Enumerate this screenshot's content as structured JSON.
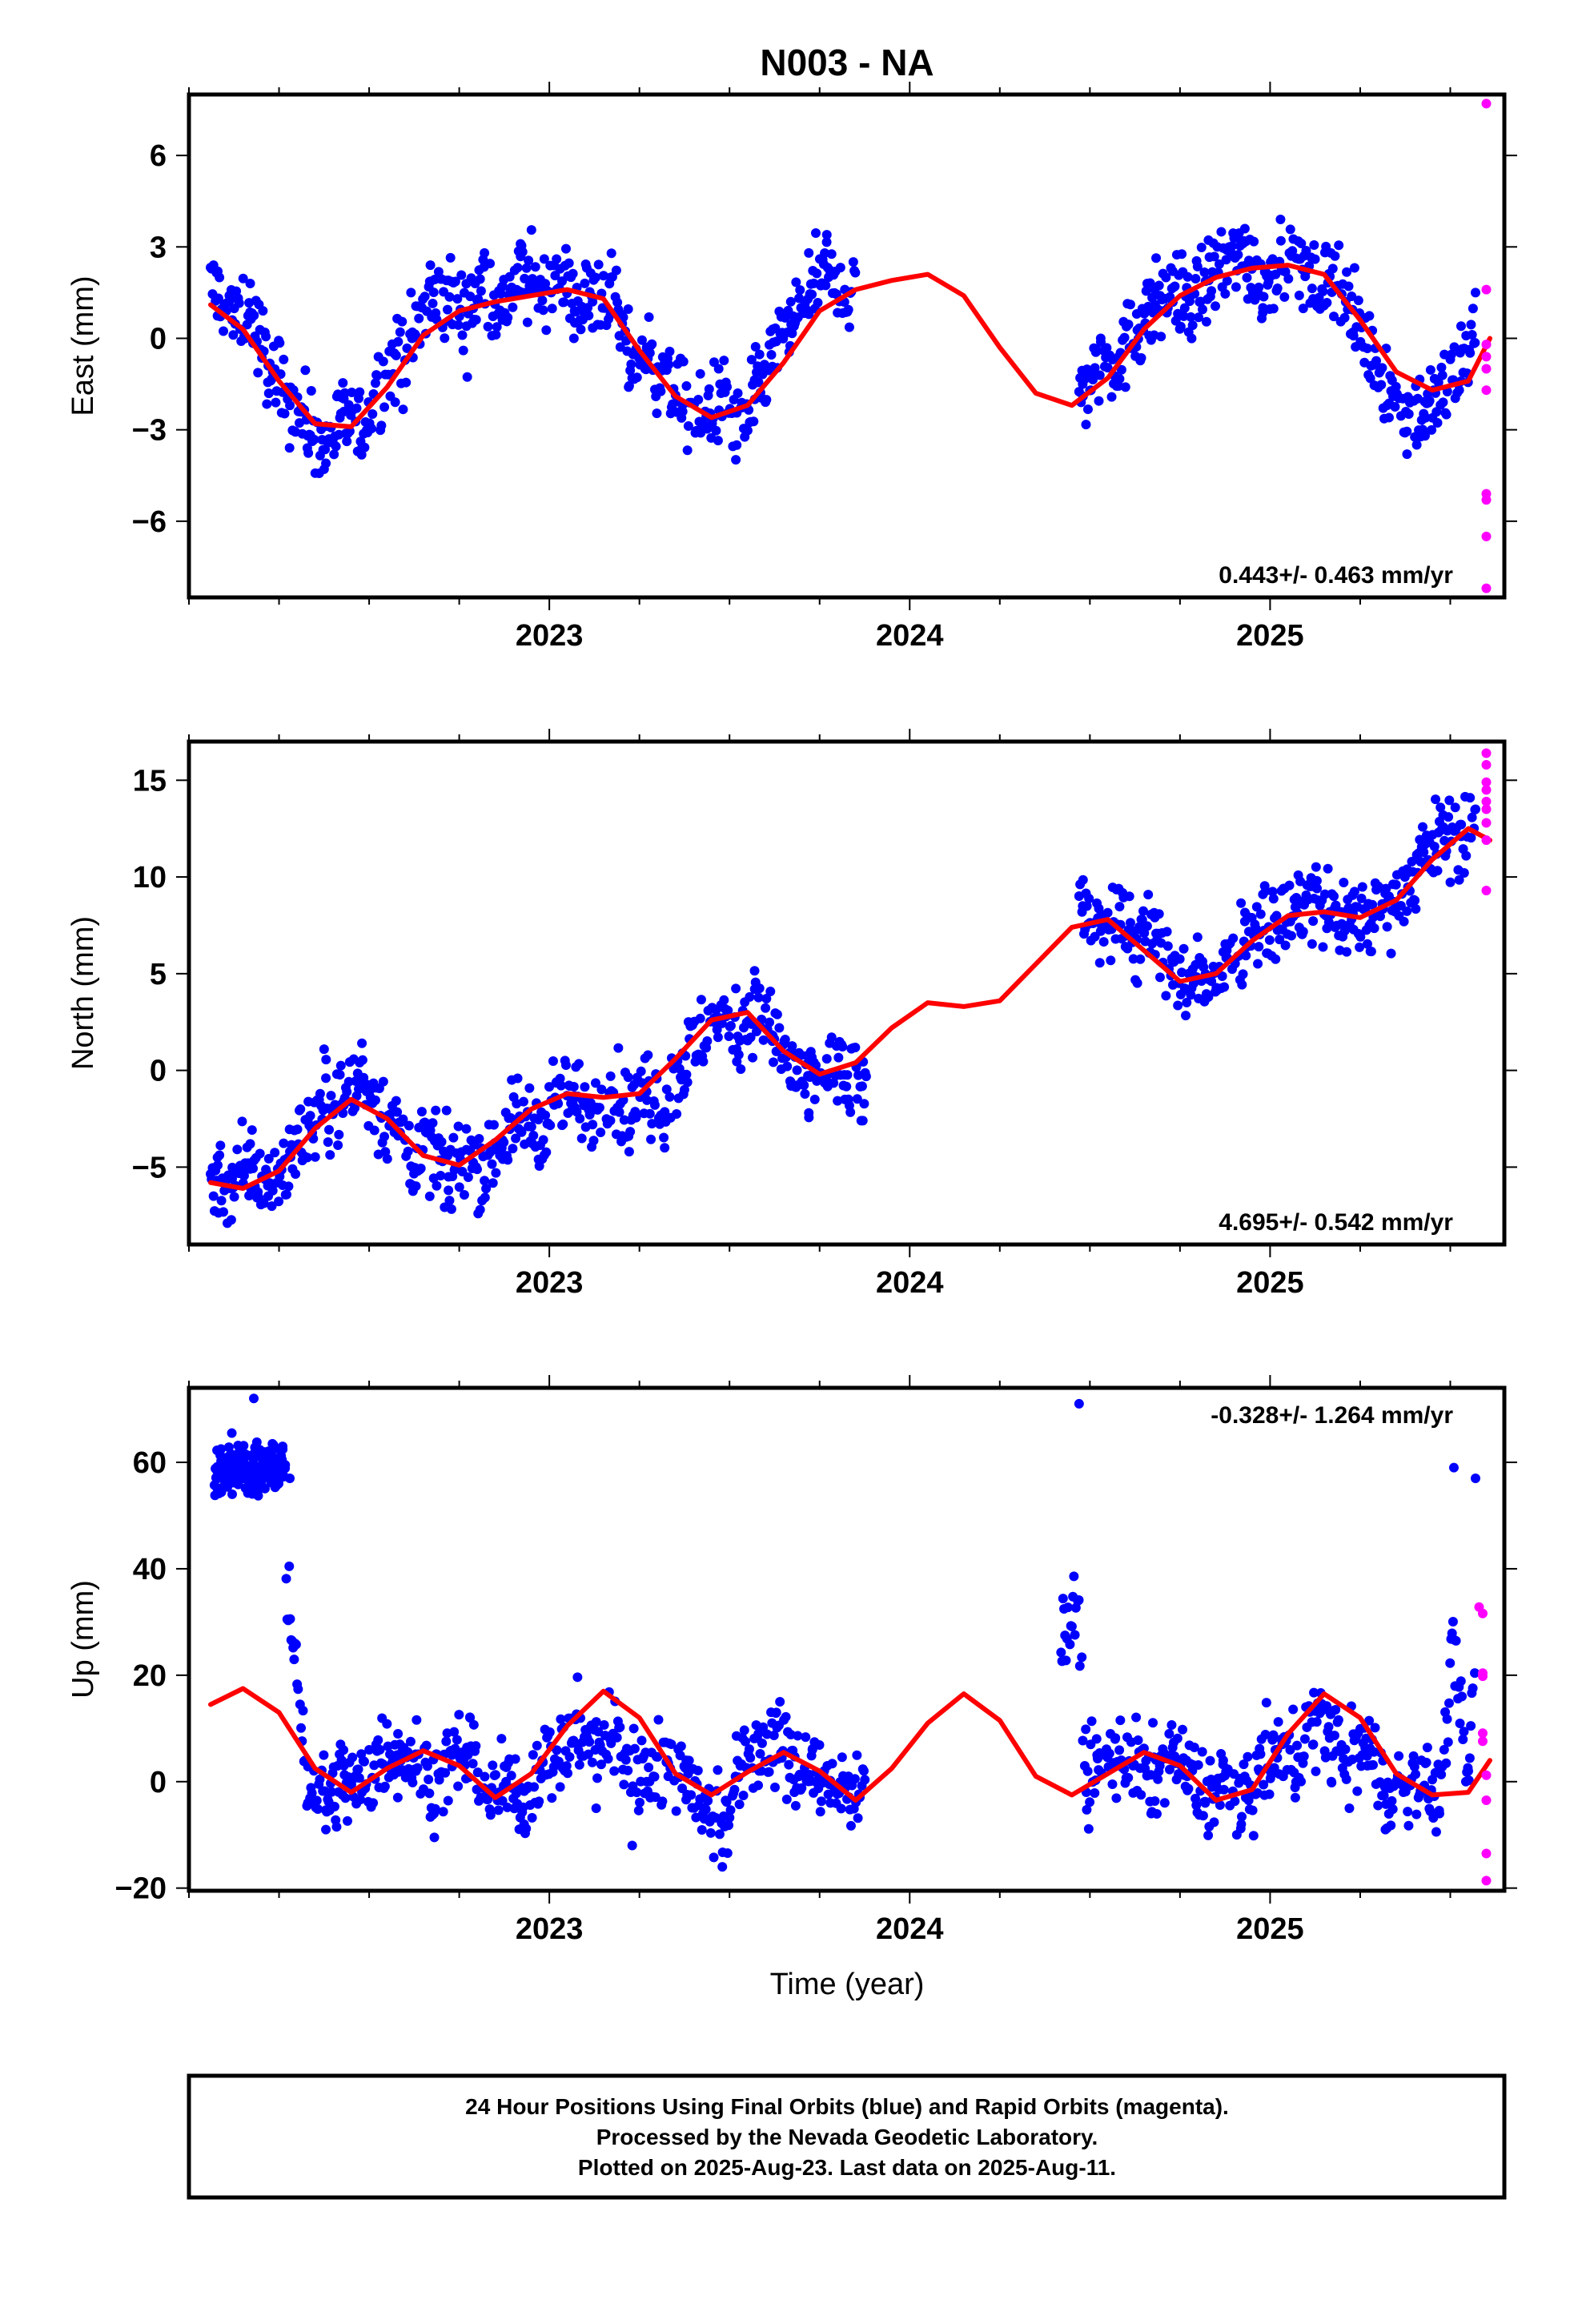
{
  "title": "N003 - NA",
  "footer": {
    "line1": "24 Hour Positions Using Final Orbits (blue) and Rapid Orbits (magenta).",
    "line2": "Processed by the Nevada Geodetic Laboratory.",
    "line3": "Plotted on 2025-Aug-23. Last data on 2025-Aug-11."
  },
  "colors": {
    "final": "#0000ff",
    "rapid": "#ff00ff",
    "model": "#ff0000",
    "axes": "#000000"
  },
  "chart_data": [
    {
      "type": "scatter",
      "ylabel": "East (mm)",
      "xlabel": "",
      "xlim": [
        2022.0,
        2025.65
      ],
      "ylim": [
        -8.5,
        8.0
      ],
      "xticks": [
        2023,
        2024,
        2025
      ],
      "xtick_labels": [
        "2023",
        "2024",
        "2025"
      ],
      "yticks": [
        6,
        3,
        0,
        -3,
        -6
      ],
      "ytick_labels": [
        "6",
        "3",
        "0",
        "−3",
        "−6"
      ],
      "rate_label": "0.443+/- 0.463 mm/yr",
      "rate_position": "bottom-right",
      "final_segments": [
        [
          2022.06,
          2023.85
        ],
        [
          2024.47,
          2025.57
        ]
      ],
      "model_curve": {
        "x": [
          2022.06,
          2022.15,
          2022.25,
          2022.35,
          2022.45,
          2022.55,
          2022.65,
          2022.75,
          2022.85,
          2022.95,
          2023.05,
          2023.15,
          2023.25,
          2023.35,
          2023.45,
          2023.55,
          2023.65,
          2023.75,
          2023.85,
          2023.95,
          2024.05,
          2024.15,
          2024.25,
          2024.35,
          2024.45,
          2024.55,
          2024.65,
          2024.75,
          2024.85,
          2024.95,
          2025.05,
          2025.15,
          2025.25,
          2025.35,
          2025.45,
          2025.55,
          2025.61
        ],
        "y": [
          1.1,
          0.3,
          -1.4,
          -2.8,
          -2.9,
          -1.6,
          0.1,
          0.9,
          1.2,
          1.4,
          1.6,
          1.3,
          -0.4,
          -1.9,
          -2.6,
          -2.2,
          -0.8,
          0.9,
          1.6,
          1.9,
          2.1,
          1.4,
          -0.3,
          -1.8,
          -2.2,
          -1.3,
          0.3,
          1.4,
          2.0,
          2.3,
          2.4,
          2.1,
          0.6,
          -1.1,
          -1.7,
          -1.4,
          0.0
        ]
      },
      "rapid_points": {
        "x": [
          2025.6,
          2025.6,
          2025.6,
          2025.6,
          2025.6,
          2025.6,
          2025.6,
          2025.6,
          2025.6,
          2025.6
        ],
        "y": [
          7.7,
          1.6,
          -0.2,
          -0.6,
          -1.0,
          -1.7,
          -5.1,
          -5.3,
          -6.5,
          -8.2
        ]
      },
      "final_points": {
        "x": [
          2022.08,
          2022.12,
          2022.17,
          2022.22,
          2022.28,
          2022.33,
          2022.38,
          2022.43,
          2022.48,
          2022.52,
          2022.57,
          2022.62,
          2022.67,
          2022.72,
          2022.77,
          2022.82,
          2022.87,
          2022.92,
          2022.97,
          2023.02,
          2023.07,
          2023.12,
          2023.17,
          2023.22,
          2023.27,
          2023.32,
          2023.37,
          2023.42,
          2023.47,
          2023.52,
          2023.57,
          2023.62,
          2023.67,
          2023.72,
          2023.77,
          2023.82,
          2024.48,
          2024.53,
          2024.58,
          2024.63,
          2024.68,
          2024.73,
          2024.78,
          2024.83,
          2024.88,
          2024.93,
          2024.98,
          2025.03,
          2025.08,
          2025.13,
          2025.18,
          2025.23,
          2025.28,
          2025.33,
          2025.38,
          2025.43,
          2025.48,
          2025.53,
          2025.57
        ],
        "y": [
          2.2,
          0.6,
          1.8,
          -0.9,
          -2.2,
          -3.2,
          -4.1,
          -2.4,
          -3.6,
          -1.2,
          -0.5,
          0.2,
          2.4,
          1.9,
          0.4,
          2.8,
          0.6,
          3.1,
          1.5,
          2.6,
          0.9,
          1.2,
          2.0,
          -1.6,
          -0.3,
          -0.8,
          -2.4,
          -3.1,
          -1.0,
          -3.5,
          -2.0,
          0.3,
          1.2,
          2.8,
          3.4,
          1.6,
          -1.5,
          0.0,
          -0.6,
          0.8,
          1.6,
          2.2,
          0.7,
          1.9,
          2.9,
          3.6,
          1.0,
          3.2,
          2.6,
          1.1,
          2.7,
          0.2,
          -0.9,
          -2.6,
          -3.8,
          -3.2,
          -2.1,
          0.4,
          1.5
        ]
      }
    },
    {
      "type": "scatter",
      "ylabel": "North (mm)",
      "xlabel": "",
      "xlim": [
        2022.0,
        2025.65
      ],
      "ylim": [
        -9.0,
        17.0
      ],
      "xticks": [
        2023,
        2024,
        2025
      ],
      "xtick_labels": [
        "2023",
        "2024",
        "2025"
      ],
      "yticks": [
        15,
        10,
        5,
        0,
        -5
      ],
      "ytick_labels": [
        "15",
        "10",
        "5",
        "0",
        "−5"
      ],
      "rate_label": "4.695+/- 0.542 mm/yr",
      "rate_position": "bottom-right",
      "final_segments": [
        [
          2022.06,
          2023.88
        ],
        [
          2024.47,
          2025.57
        ]
      ],
      "model_curve": {
        "x": [
          2022.06,
          2022.15,
          2022.25,
          2022.35,
          2022.45,
          2022.55,
          2022.65,
          2022.75,
          2022.85,
          2022.95,
          2023.05,
          2023.15,
          2023.25,
          2023.35,
          2023.45,
          2023.55,
          2023.65,
          2023.75,
          2023.85,
          2023.95,
          2024.05,
          2024.15,
          2024.25,
          2024.35,
          2024.45,
          2024.55,
          2024.65,
          2024.75,
          2024.85,
          2024.95,
          2025.05,
          2025.15,
          2025.25,
          2025.35,
          2025.45,
          2025.55,
          2025.61
        ],
        "y": [
          -5.8,
          -6.1,
          -5.2,
          -3.0,
          -1.5,
          -2.5,
          -4.4,
          -4.9,
          -3.6,
          -2.0,
          -1.2,
          -1.4,
          -1.2,
          0.6,
          2.6,
          3.0,
          1.0,
          -0.2,
          0.4,
          2.2,
          3.5,
          3.3,
          3.6,
          5.5,
          7.4,
          7.8,
          6.2,
          4.6,
          5.0,
          6.7,
          8.0,
          8.2,
          7.9,
          8.8,
          10.9,
          12.5,
          11.9
        ]
      },
      "rapid_points": {
        "x": [
          2025.6,
          2025.6,
          2025.6,
          2025.6,
          2025.6,
          2025.6,
          2025.6,
          2025.6,
          2025.6
        ],
        "y": [
          16.4,
          15.8,
          14.9,
          14.5,
          13.9,
          13.5,
          12.8,
          11.9,
          9.3
        ]
      },
      "final_points": {
        "x": [
          2022.08,
          2022.12,
          2022.17,
          2022.22,
          2022.28,
          2022.33,
          2022.38,
          2022.43,
          2022.48,
          2022.52,
          2022.57,
          2022.62,
          2022.67,
          2022.72,
          2022.77,
          2022.82,
          2022.87,
          2022.92,
          2022.97,
          2023.02,
          2023.07,
          2023.12,
          2023.17,
          2023.22,
          2023.27,
          2023.32,
          2023.37,
          2023.42,
          2023.47,
          2023.52,
          2023.57,
          2023.62,
          2023.67,
          2023.72,
          2023.77,
          2023.82,
          2023.87,
          2024.48,
          2024.53,
          2024.58,
          2024.63,
          2024.68,
          2024.73,
          2024.78,
          2024.83,
          2024.88,
          2024.93,
          2024.98,
          2025.03,
          2025.08,
          2025.13,
          2025.18,
          2025.23,
          2025.28,
          2025.33,
          2025.38,
          2025.43,
          2025.48,
          2025.53,
          2025.57
        ],
        "y": [
          -4.9,
          -5.6,
          -3.8,
          -6.5,
          -4.2,
          -2.6,
          -0.4,
          -1.8,
          1.4,
          -0.9,
          -3.2,
          -5.0,
          -3.1,
          -6.2,
          -4.1,
          -5.7,
          -3.6,
          -2.5,
          -4.6,
          -0.6,
          -1.9,
          -2.8,
          -0.3,
          -3.4,
          -1.1,
          -4.0,
          -0.2,
          0.8,
          2.6,
          1.1,
          4.2,
          1.8,
          -0.6,
          -2.2,
          0.6,
          -1.5,
          -2.6,
          8.5,
          7.2,
          9.4,
          6.8,
          7.9,
          5.6,
          3.9,
          4.7,
          6.2,
          7.7,
          9.1,
          7.3,
          8.6,
          9.8,
          7.4,
          8.1,
          7.6,
          9.0,
          10.4,
          11.7,
          13.2,
          12.1,
          13.5
        ]
      }
    },
    {
      "type": "scatter",
      "ylabel": "Up (mm)",
      "xlabel": "Time (year)",
      "xlim": [
        2022.0,
        2025.65
      ],
      "ylim": [
        -20.5,
        74.0
      ],
      "xticks": [
        2023,
        2024,
        2025
      ],
      "xtick_labels": [
        "2023",
        "2024",
        "2025"
      ],
      "yticks": [
        60,
        40,
        20,
        0,
        -20
      ],
      "ytick_labels": [
        "60",
        "40",
        "20",
        "0",
        "−20"
      ],
      "rate_label": "-0.328+/- 1.264 mm/yr",
      "rate_position": "top-right",
      "final_segments": [
        [
          2022.27,
          2023.88
        ],
        [
          2024.42,
          2025.57
        ]
      ],
      "outlier_cluster": {
        "x_range": [
          2022.07,
          2022.27
        ],
        "y_range": [
          52,
          66
        ]
      },
      "model_curve": {
        "x": [
          2022.06,
          2022.15,
          2022.25,
          2022.35,
          2022.45,
          2022.55,
          2022.65,
          2022.75,
          2022.85,
          2022.95,
          2023.05,
          2023.15,
          2023.25,
          2023.35,
          2023.45,
          2023.55,
          2023.65,
          2023.75,
          2023.85,
          2023.95,
          2024.05,
          2024.15,
          2024.25,
          2024.35,
          2024.45,
          2024.55,
          2024.65,
          2024.75,
          2024.85,
          2024.95,
          2025.05,
          2025.15,
          2025.25,
          2025.35,
          2025.45,
          2025.55,
          2025.61
        ],
        "y": [
          14.5,
          17.5,
          13.0,
          2.5,
          -2.0,
          2.5,
          5.8,
          3.0,
          -3.0,
          1.5,
          10.5,
          17.0,
          12.0,
          1.5,
          -2.5,
          1.8,
          5.5,
          2.0,
          -3.5,
          2.5,
          11.0,
          16.5,
          11.5,
          1.0,
          -2.5,
          1.5,
          5.5,
          3.0,
          -3.5,
          -1.5,
          9.0,
          16.5,
          12.0,
          1.5,
          -2.5,
          -2.0,
          4.0
        ]
      },
      "rapid_points": {
        "x": [
          2025.58,
          2025.59,
          2025.59,
          2025.59,
          2025.59,
          2025.59,
          2025.6,
          2025.6,
          2025.6,
          2025.6
        ],
        "y": [
          32.8,
          31.6,
          20.4,
          19.8,
          9.1,
          7.6,
          1.2,
          -3.5,
          -13.5,
          -18.6
        ]
      },
      "final_points": {
        "x": [
          2022.08,
          2022.1,
          2022.12,
          2022.14,
          2022.16,
          2022.18,
          2022.2,
          2022.22,
          2022.24,
          2022.26,
          2022.28,
          2022.33,
          2022.38,
          2022.43,
          2022.48,
          2022.53,
          2022.58,
          2022.63,
          2022.68,
          2022.73,
          2022.78,
          2022.83,
          2022.88,
          2022.93,
          2022.98,
          2023.03,
          2023.08,
          2023.13,
          2023.18,
          2023.23,
          2023.28,
          2023.33,
          2023.38,
          2023.43,
          2023.48,
          2023.53,
          2023.58,
          2023.63,
          2023.68,
          2023.73,
          2023.78,
          2023.83,
          2024.47,
          2024.49,
          2024.52,
          2024.57,
          2024.62,
          2024.67,
          2024.72,
          2024.77,
          2024.82,
          2024.87,
          2024.92,
          2024.97,
          2025.02,
          2025.07,
          2025.12,
          2025.17,
          2025.22,
          2025.27,
          2025.32,
          2025.37,
          2025.42,
          2025.47,
          2025.51,
          2025.55,
          2025.57
        ],
        "y": [
          57,
          60,
          54,
          62,
          58,
          72,
          56,
          61,
          59,
          63,
          57,
          -4,
          -9,
          3,
          -2,
          6,
          9,
          2,
          -6,
          5,
          12,
          -3,
          0,
          -8,
          4,
          -1,
          7,
          -5,
          2,
          -12,
          -3,
          1,
          4,
          -7,
          -16,
          3,
          9,
          13,
          -2,
          6,
          -4,
          1,
          71,
          -2,
          5,
          8,
          3,
          -6,
          9,
          1,
          -4,
          4,
          -8,
          2,
          6,
          -3,
          7,
          0,
          -5,
          3,
          -9,
          -2,
          4,
          -6,
          59,
          2,
          57
        ]
      }
    }
  ]
}
